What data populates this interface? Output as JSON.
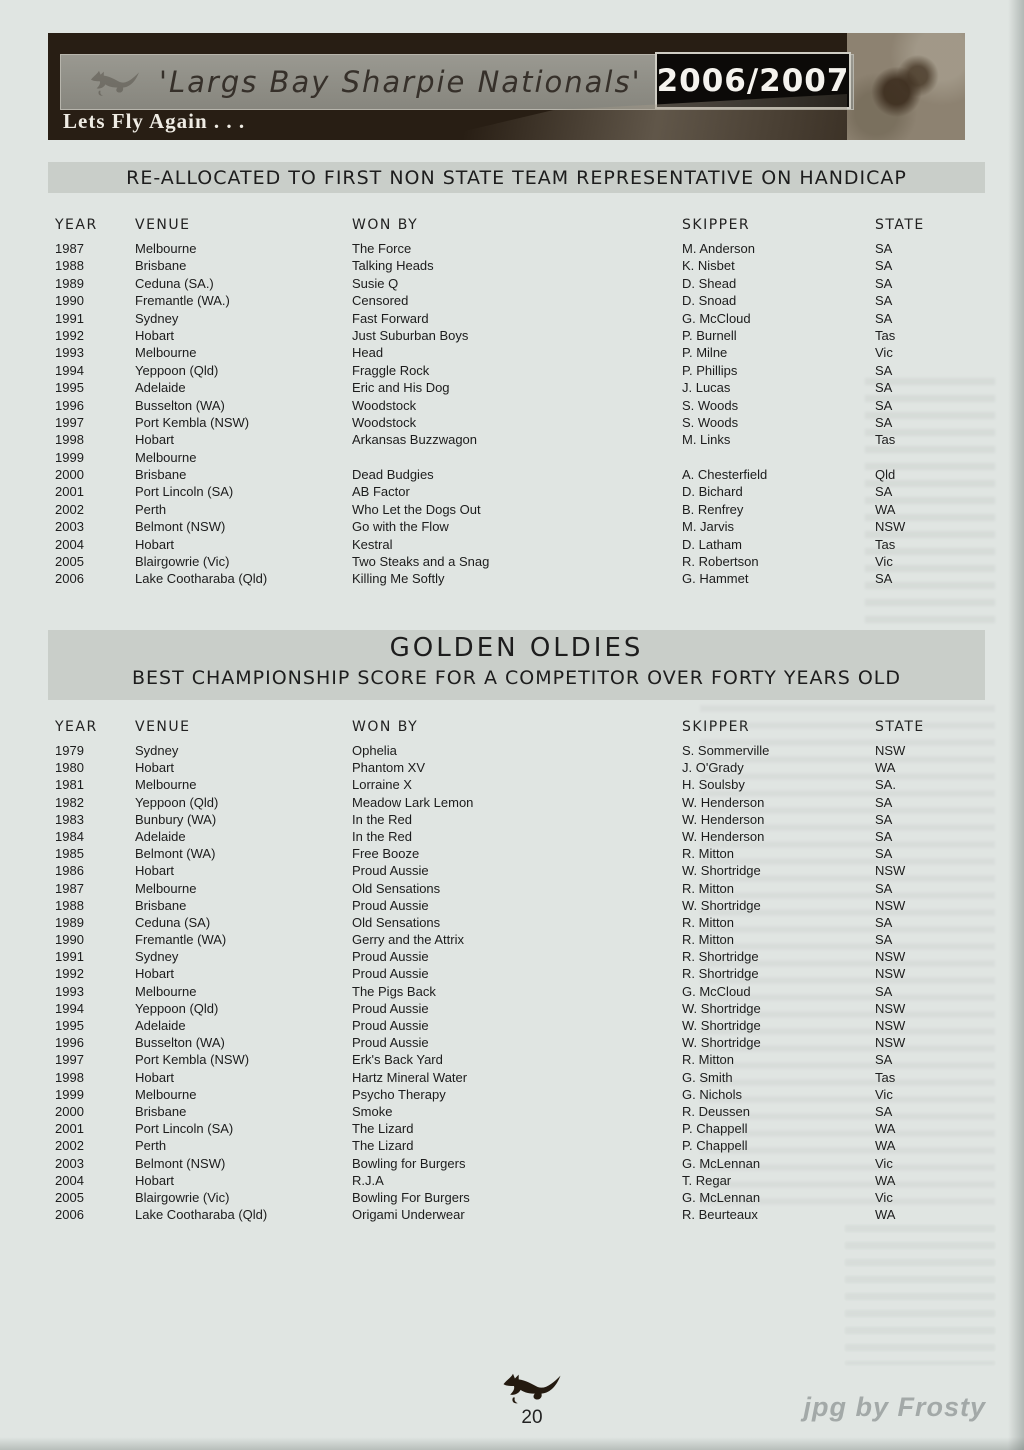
{
  "banner": {
    "script_title": "'Largs Bay Sharpie Nationals'",
    "season": "2006/2007",
    "tagline": "Lets Fly Again . . ."
  },
  "section1": {
    "title": "RE-ALLOCATED TO FIRST NON STATE TEAM REPRESENTATIVE ON HANDICAP",
    "columns": [
      "YEAR",
      "VENUE",
      "WON BY",
      "SKIPPER",
      "STATE"
    ],
    "rows": [
      [
        "1987",
        "Melbourne",
        "The Force",
        "M. Anderson",
        "SA"
      ],
      [
        "1988",
        "Brisbane",
        "Talking Heads",
        "K. Nisbet",
        "SA"
      ],
      [
        "1989",
        "Ceduna (SA.)",
        "Susie Q",
        "D. Shead",
        "SA"
      ],
      [
        "1990",
        "Fremantle (WA.)",
        "Censored",
        "D. Snoad",
        "SA"
      ],
      [
        "1991",
        "Sydney",
        "Fast Forward",
        "G. McCloud",
        "SA"
      ],
      [
        "1992",
        "Hobart",
        "Just Suburban Boys",
        "P. Burnell",
        "Tas"
      ],
      [
        "1993",
        "Melbourne",
        "Head",
        "P. Milne",
        "Vic"
      ],
      [
        "1994",
        "Yeppoon (Qld)",
        "Fraggle Rock",
        "P. Phillips",
        "SA"
      ],
      [
        "1995",
        "Adelaide",
        "Eric and His Dog",
        "J. Lucas",
        "SA"
      ],
      [
        "1996",
        "Busselton (WA)",
        "Woodstock",
        "S. Woods",
        "SA"
      ],
      [
        "1997",
        "Port Kembla (NSW)",
        "Woodstock",
        "S. Woods",
        "SA"
      ],
      [
        "1998",
        "Hobart",
        "Arkansas Buzzwagon",
        "M. Links",
        "Tas"
      ],
      [
        "1999",
        "Melbourne",
        "",
        "",
        ""
      ],
      [
        "2000",
        "Brisbane",
        "Dead Budgies",
        "A. Chesterfield",
        "Qld"
      ],
      [
        "2001",
        "Port Lincoln (SA)",
        "AB Factor",
        "D. Bichard",
        "SA"
      ],
      [
        "2002",
        "Perth",
        "Who Let the Dogs Out",
        "B. Renfrey",
        "WA"
      ],
      [
        "2003",
        "Belmont (NSW)",
        "Go with the Flow",
        "M. Jarvis",
        "NSW"
      ],
      [
        "2004",
        "Hobart",
        "Kestral",
        "D. Latham",
        "Tas"
      ],
      [
        "2005",
        "Blairgowrie (Vic)",
        "Two Steaks and a Snag",
        "R. Robertson",
        "Vic"
      ],
      [
        "2006",
        "Lake Cootharaba (Qld)",
        "Killing Me Softly",
        "G. Hammet",
        "SA"
      ]
    ]
  },
  "section2": {
    "title": "GOLDEN OLDIES",
    "subtitle": "BEST CHAMPIONSHIP SCORE FOR A COMPETITOR OVER FORTY YEARS OLD",
    "columns": [
      "YEAR",
      "VENUE",
      "WON BY",
      "SKIPPER",
      "STATE"
    ],
    "rows": [
      [
        "1979",
        "Sydney",
        "Ophelia",
        "S. Sommerville",
        "NSW"
      ],
      [
        "1980",
        "Hobart",
        "Phantom XV",
        "J. O'Grady",
        "WA"
      ],
      [
        "1981",
        "Melbourne",
        "Lorraine X",
        "H. Soulsby",
        "SA."
      ],
      [
        "1982",
        "Yeppoon (Qld)",
        "Meadow Lark Lemon",
        "W. Henderson",
        "SA"
      ],
      [
        "1983",
        "Bunbury (WA)",
        "In the Red",
        "W. Henderson",
        "SA"
      ],
      [
        "1984",
        "Adelaide",
        "In the Red",
        "W. Henderson",
        "SA"
      ],
      [
        "1985",
        "Belmont (WA)",
        "Free Booze",
        "R. Mitton",
        "SA"
      ],
      [
        "1986",
        "Hobart",
        "Proud Aussie",
        "W. Shortridge",
        "NSW"
      ],
      [
        "1987",
        "Melbourne",
        "Old Sensations",
        "R. Mitton",
        "SA"
      ],
      [
        "1988",
        "Brisbane",
        "Proud Aussie",
        "W. Shortridge",
        "NSW"
      ],
      [
        "1989",
        "Ceduna (SA)",
        "Old Sensations",
        "R. Mitton",
        "SA"
      ],
      [
        "1990",
        "Fremantle (WA)",
        "Gerry and the Attrix",
        "R. Mitton",
        "SA"
      ],
      [
        "1991",
        "Sydney",
        "Proud Aussie",
        "R. Shortridge",
        "NSW"
      ],
      [
        "1992",
        "Hobart",
        "Proud Aussie",
        "R. Shortridge",
        "NSW"
      ],
      [
        "1993",
        "Melbourne",
        "The Pigs Back",
        "G. McCloud",
        "SA"
      ],
      [
        "1994",
        "Yeppoon (Qld)",
        "Proud Aussie",
        "W. Shortridge",
        "NSW"
      ],
      [
        "1995",
        "Adelaide",
        "Proud Aussie",
        "W. Shortridge",
        "NSW"
      ],
      [
        "1996",
        "Busselton (WA)",
        "Proud Aussie",
        "W. Shortridge",
        "NSW"
      ],
      [
        "1997",
        "Port Kembla (NSW)",
        "Erk's Back Yard",
        "R. Mitton",
        "SA"
      ],
      [
        "1998",
        "Hobart",
        "Hartz Mineral Water",
        "G. Smith",
        "Tas"
      ],
      [
        "1999",
        "Melbourne",
        "Psycho Therapy",
        "G. Nichols",
        "Vic"
      ],
      [
        "2000",
        "Brisbane",
        "Smoke",
        "R. Deussen",
        "SA"
      ],
      [
        "2001",
        "Port Lincoln (SA)",
        "The Lizard",
        "P. Chappell",
        "WA"
      ],
      [
        "2002",
        "Perth",
        "The Lizard",
        "P. Chappell",
        "WA"
      ],
      [
        "2003",
        "Belmont (NSW)",
        "Bowling for Burgers",
        "G. McLennan",
        "Vic"
      ],
      [
        "2004",
        "Hobart",
        "R.J.A",
        "T. Regar",
        "WA"
      ],
      [
        "2005",
        "Blairgowrie (Vic)",
        "Bowling For Burgers",
        "G. McLennan",
        "Vic"
      ],
      [
        "2006",
        "Lake Cootharaba (Qld)",
        "Origami Underwear",
        "R. Beurteaux",
        "WA"
      ]
    ]
  },
  "footer": {
    "page_number": "20"
  },
  "watermark": "jpg by Frosty",
  "colors": {
    "page_bg": "#e0e5e2",
    "bar_bg": "#c9cec9",
    "text": "#1c1c1c",
    "banner_bg": "#281e14",
    "banner_strip": "#8f8e86",
    "banner_script": "#36302a",
    "season_box": "#0c0a08",
    "season_text": "#f5f3ee",
    "tagline": "#efece4",
    "photo_sepia": "#8d8271",
    "watermark": "#a3a9a8",
    "kangaroo": "#241a10"
  }
}
